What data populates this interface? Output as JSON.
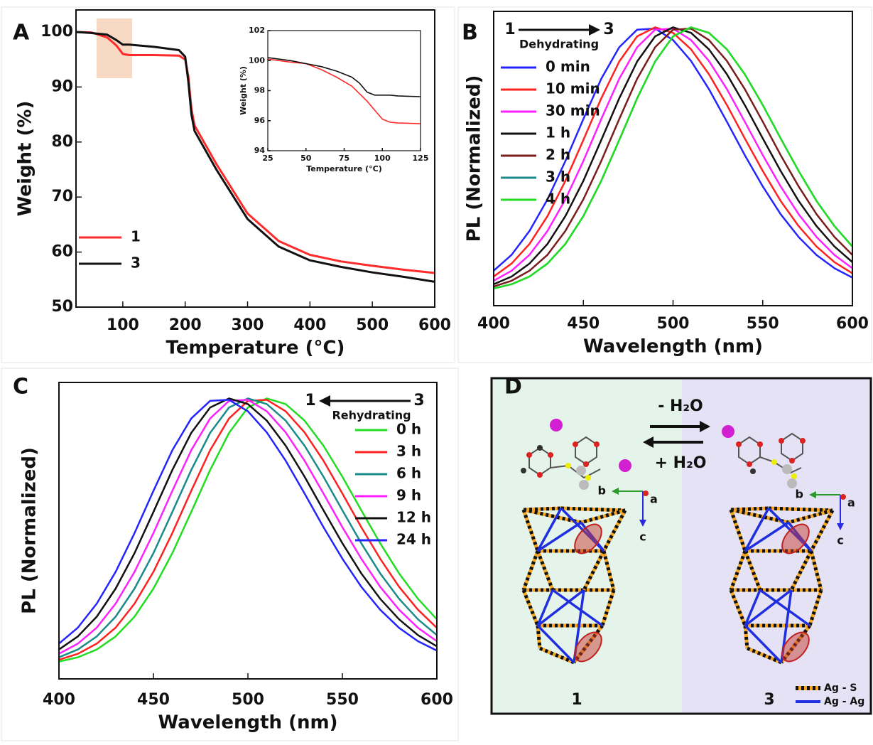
{
  "chart_data": [
    {
      "type": "line",
      "panel_label": "A",
      "x_label": "Temperature (°C)",
      "y_label": "Weight (%)",
      "xlim": [
        25,
        600
      ],
      "ylim": [
        50,
        104
      ],
      "xticks": [
        100,
        200,
        300,
        400,
        500,
        600
      ],
      "yticks": [
        50,
        60,
        70,
        80,
        90,
        100
      ],
      "legend": "lower left",
      "x": [
        25,
        50,
        75,
        90,
        100,
        110,
        150,
        190,
        200,
        205,
        210,
        215,
        220,
        250,
        300,
        350,
        400,
        450,
        500,
        550,
        600
      ],
      "series": [
        {
          "name": "1",
          "color": "#ff2a2a",
          "values": [
            100,
            99.9,
            99,
            97.5,
            96,
            95.8,
            95.8,
            95.7,
            95,
            92,
            86,
            83,
            82,
            76,
            67,
            62,
            59.5,
            58.3,
            57.5,
            56.8,
            56.2
          ]
        },
        {
          "name": "3",
          "color": "#111111",
          "values": [
            100,
            99.8,
            99.5,
            98.5,
            97.7,
            97.7,
            97.3,
            96.7,
            95.5,
            91,
            85,
            82,
            81,
            75,
            66,
            61,
            58.5,
            57.3,
            56.3,
            55.5,
            54.6
          ]
        }
      ]
    },
    {
      "type": "line",
      "x_label": "Temperature (°C)",
      "y_label": "Weight (%)",
      "xlim": [
        25,
        125
      ],
      "ylim": [
        94,
        102
      ],
      "xticks": [
        25,
        50,
        75,
        100,
        125
      ],
      "yticks": [
        94,
        96,
        98,
        100,
        102
      ],
      "x": [
        25,
        40,
        50,
        60,
        70,
        80,
        85,
        90,
        95,
        100,
        105,
        110,
        125
      ],
      "series": [
        {
          "color": "#ff2a2a",
          "values": [
            100.1,
            99.9,
            99.8,
            99.4,
            98.9,
            98.3,
            97.8,
            97.3,
            96.7,
            96.1,
            95.9,
            95.85,
            95.8
          ]
        },
        {
          "color": "#111111",
          "values": [
            100.2,
            100,
            99.8,
            99.6,
            99.3,
            98.9,
            98.5,
            97.9,
            97.7,
            97.7,
            97.7,
            97.65,
            97.6
          ]
        }
      ]
    },
    {
      "type": "line",
      "panel_label": "B",
      "x_label": "Wavelength (nm)",
      "y_label": "PL (Normalized)",
      "xlim": [
        400,
        600
      ],
      "ylim": [
        -0.05,
        1.06
      ],
      "xticks": [
        400,
        450,
        500,
        550,
        600
      ],
      "legend": "upper left",
      "annotations": {
        "from": "1",
        "to": "3",
        "process": "Dehydrating"
      },
      "x": [
        400,
        410,
        420,
        430,
        440,
        450,
        460,
        470,
        480,
        490,
        500,
        510,
        520,
        530,
        540,
        550,
        560,
        570,
        580,
        590,
        600
      ],
      "series": [
        {
          "name": "0 min",
          "color": "#2424ff",
          "values": [
            0.082,
            0.142,
            0.232,
            0.351,
            0.496,
            0.654,
            0.806,
            0.925,
            0.991,
            0.995,
            0.952,
            0.873,
            0.767,
            0.644,
            0.518,
            0.4,
            0.295,
            0.209,
            0.141,
            0.091,
            0.056
          ]
        },
        {
          "name": "10 min",
          "color": "#ff2020",
          "values": [
            0.06,
            0.109,
            0.183,
            0.288,
            0.421,
            0.575,
            0.732,
            0.871,
            0.966,
            1,
            0.979,
            0.917,
            0.823,
            0.707,
            0.581,
            0.458,
            0.345,
            0.25,
            0.173,
            0.114,
            0.072
          ]
        },
        {
          "name": "30 min",
          "color": "#ff20ff",
          "values": [
            0.044,
            0.082,
            0.142,
            0.232,
            0.351,
            0.496,
            0.654,
            0.806,
            0.925,
            0.991,
            0.995,
            0.952,
            0.873,
            0.767,
            0.644,
            0.518,
            0.4,
            0.295,
            0.209,
            0.141,
            0.091
          ]
        },
        {
          "name": "1 h",
          "color": "#111111",
          "values": [
            0.031,
            0.06,
            0.109,
            0.183,
            0.288,
            0.421,
            0.575,
            0.732,
            0.871,
            0.966,
            1,
            0.979,
            0.917,
            0.823,
            0.707,
            0.581,
            0.458,
            0.345,
            0.25,
            0.173,
            0.114
          ]
        },
        {
          "name": "2 h",
          "color": "#7a1c1c",
          "values": [
            0.022,
            0.044,
            0.082,
            0.142,
            0.232,
            0.351,
            0.496,
            0.654,
            0.806,
            0.925,
            0.991,
            0.995,
            0.952,
            0.873,
            0.767,
            0.644,
            0.518,
            0.4,
            0.295,
            0.209,
            0.141
          ]
        },
        {
          "name": "3 h",
          "color": "#1a8a8a",
          "values": [
            0.015,
            0.031,
            0.06,
            0.109,
            0.183,
            0.288,
            0.421,
            0.575,
            0.732,
            0.871,
            0.966,
            1,
            0.979,
            0.917,
            0.823,
            0.707,
            0.581,
            0.458,
            0.345,
            0.25,
            0.173
          ]
        },
        {
          "name": "4 h",
          "color": "#22dd22",
          "values": [
            0.015,
            0.031,
            0.06,
            0.109,
            0.183,
            0.288,
            0.421,
            0.575,
            0.732,
            0.871,
            0.966,
            1,
            0.979,
            0.917,
            0.823,
            0.707,
            0.581,
            0.458,
            0.345,
            0.25,
            0.173
          ]
        }
      ]
    },
    {
      "type": "line",
      "panel_label": "C",
      "x_label": "Wavelength (nm)",
      "y_label": "PL (Normalized)",
      "xlim": [
        400,
        600
      ],
      "ylim": [
        -0.05,
        1.06
      ],
      "xticks": [
        400,
        450,
        500,
        550,
        600
      ],
      "legend": "upper right",
      "annotations": {
        "from": "3",
        "to": "1",
        "process": "Rehydrating"
      },
      "x": [
        400,
        410,
        420,
        430,
        440,
        450,
        460,
        470,
        480,
        490,
        500,
        510,
        520,
        530,
        540,
        550,
        560,
        570,
        580,
        590,
        600
      ],
      "series": [
        {
          "name": "0 h",
          "color": "#22dd22",
          "values": [
            0.015,
            0.031,
            0.06,
            0.109,
            0.183,
            0.288,
            0.421,
            0.575,
            0.732,
            0.871,
            0.966,
            1,
            0.979,
            0.917,
            0.823,
            0.707,
            0.581,
            0.458,
            0.345,
            0.25,
            0.173
          ]
        },
        {
          "name": "3 h",
          "color": "#ff2020",
          "values": [
            0.022,
            0.044,
            0.082,
            0.142,
            0.232,
            0.351,
            0.496,
            0.654,
            0.806,
            0.925,
            0.991,
            0.995,
            0.952,
            0.873,
            0.767,
            0.644,
            0.518,
            0.4,
            0.295,
            0.209,
            0.141
          ]
        },
        {
          "name": "6 h",
          "color": "#1a8a8a",
          "values": [
            0.031,
            0.06,
            0.109,
            0.183,
            0.288,
            0.421,
            0.575,
            0.732,
            0.871,
            0.966,
            1,
            0.979,
            0.917,
            0.823,
            0.707,
            0.581,
            0.458,
            0.345,
            0.25,
            0.173,
            0.114
          ]
        },
        {
          "name": "9 h",
          "color": "#ff20ff",
          "values": [
            0.044,
            0.082,
            0.142,
            0.232,
            0.351,
            0.496,
            0.654,
            0.806,
            0.925,
            0.991,
            0.995,
            0.952,
            0.873,
            0.767,
            0.644,
            0.518,
            0.4,
            0.295,
            0.209,
            0.141,
            0.091
          ]
        },
        {
          "name": "12 h",
          "color": "#111111",
          "values": [
            0.06,
            0.109,
            0.183,
            0.288,
            0.421,
            0.575,
            0.732,
            0.871,
            0.966,
            1,
            0.979,
            0.917,
            0.823,
            0.707,
            0.581,
            0.458,
            0.345,
            0.25,
            0.173,
            0.114,
            0.072
          ]
        },
        {
          "name": "24 h",
          "color": "#2424ff",
          "values": [
            0.082,
            0.142,
            0.232,
            0.351,
            0.496,
            0.654,
            0.806,
            0.925,
            0.991,
            0.995,
            0.952,
            0.873,
            0.767,
            0.644,
            0.518,
            0.4,
            0.295,
            0.209,
            0.141,
            0.091,
            0.056
          ]
        }
      ]
    }
  ],
  "diagram": {
    "panel_label": "D",
    "reactions": [
      "- H₂O",
      "+ H₂O"
    ],
    "axes_left": [
      "b",
      "a",
      "c"
    ],
    "axes_right": [
      "b",
      "a",
      "c"
    ],
    "compounds": [
      "1",
      "3"
    ],
    "legend": [
      "Ag - S",
      "Ag - Ag"
    ]
  }
}
